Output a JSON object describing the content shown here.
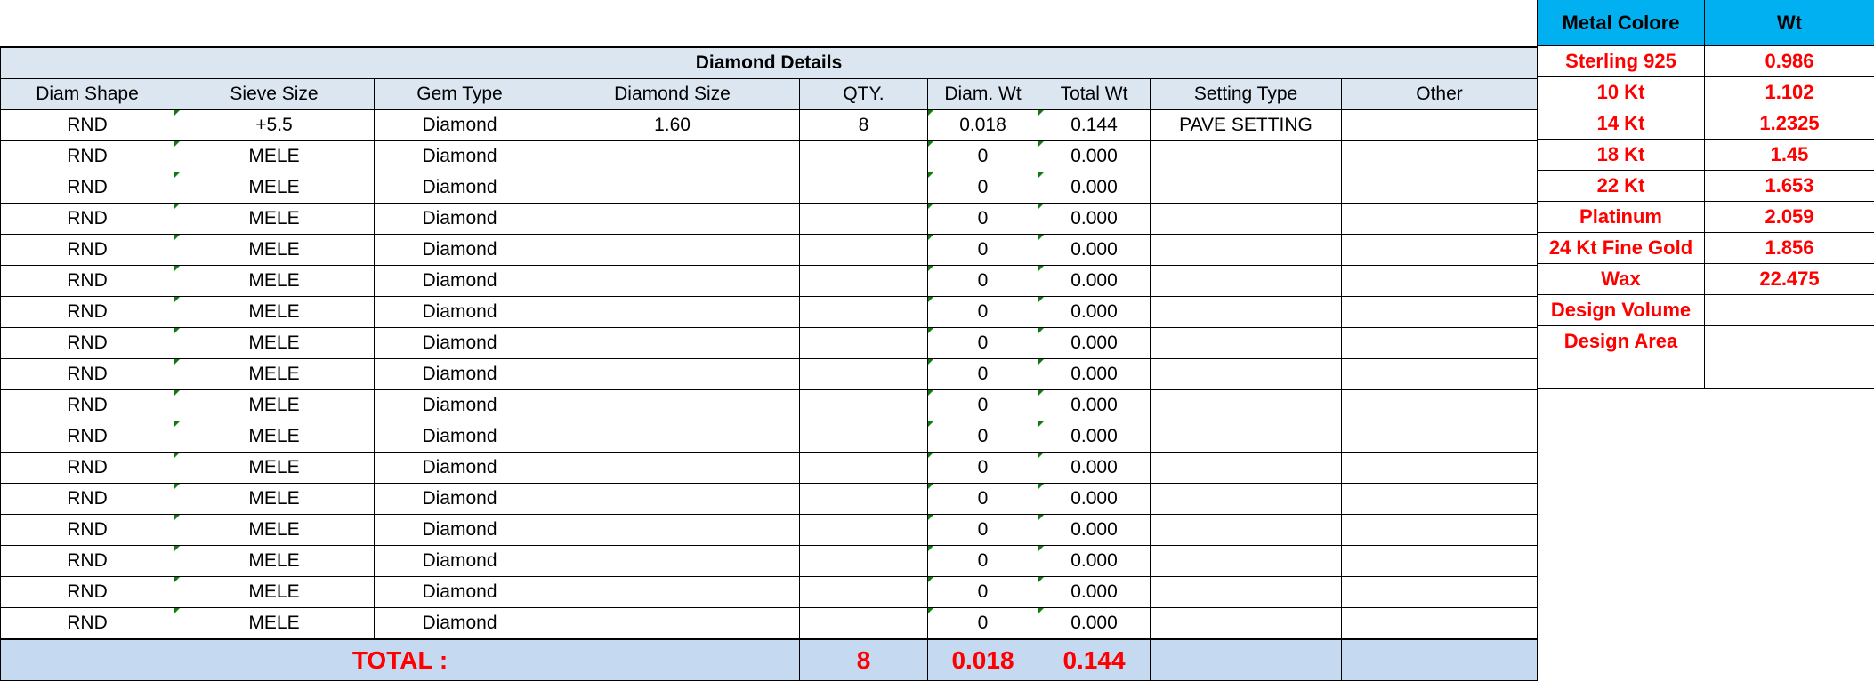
{
  "diamond_details": {
    "title": "Diamond Details",
    "columns": [
      "Diam Shape",
      "Sieve Size",
      "Gem Type",
      "Diamond Size",
      "QTY.",
      "Diam. Wt",
      "Total Wt",
      "Setting Type",
      "Other"
    ],
    "rows": [
      [
        "RND",
        "+5.5",
        "Diamond",
        "1.60",
        "8",
        "0.018",
        "0.144",
        "PAVE SETTING",
        ""
      ],
      [
        "RND",
        "MELE",
        "Diamond",
        "",
        "",
        "0",
        "0.000",
        "",
        ""
      ],
      [
        "RND",
        "MELE",
        "Diamond",
        "",
        "",
        "0",
        "0.000",
        "",
        ""
      ],
      [
        "RND",
        "MELE",
        "Diamond",
        "",
        "",
        "0",
        "0.000",
        "",
        ""
      ],
      [
        "RND",
        "MELE",
        "Diamond",
        "",
        "",
        "0",
        "0.000",
        "",
        ""
      ],
      [
        "RND",
        "MELE",
        "Diamond",
        "",
        "",
        "0",
        "0.000",
        "",
        ""
      ],
      [
        "RND",
        "MELE",
        "Diamond",
        "",
        "",
        "0",
        "0.000",
        "",
        ""
      ],
      [
        "RND",
        "MELE",
        "Diamond",
        "",
        "",
        "0",
        "0.000",
        "",
        ""
      ],
      [
        "RND",
        "MELE",
        "Diamond",
        "",
        "",
        "0",
        "0.000",
        "",
        ""
      ],
      [
        "RND",
        "MELE",
        "Diamond",
        "",
        "",
        "0",
        "0.000",
        "",
        ""
      ],
      [
        "RND",
        "MELE",
        "Diamond",
        "",
        "",
        "0",
        "0.000",
        "",
        ""
      ],
      [
        "RND",
        "MELE",
        "Diamond",
        "",
        "",
        "0",
        "0.000",
        "",
        ""
      ],
      [
        "RND",
        "MELE",
        "Diamond",
        "",
        "",
        "0",
        "0.000",
        "",
        ""
      ],
      [
        "RND",
        "MELE",
        "Diamond",
        "",
        "",
        "0",
        "0.000",
        "",
        ""
      ],
      [
        "RND",
        "MELE",
        "Diamond",
        "",
        "",
        "0",
        "0.000",
        "",
        ""
      ],
      [
        "RND",
        "MELE",
        "Diamond",
        "",
        "",
        "0",
        "0.000",
        "",
        ""
      ],
      [
        "RND",
        "MELE",
        "Diamond",
        "",
        "",
        "0",
        "0.000",
        "",
        ""
      ]
    ],
    "total": {
      "label": "TOTAL :",
      "qty": "8",
      "diam_wt": "0.018",
      "total_wt": "0.144"
    }
  },
  "metal": {
    "columns": [
      "Metal Colore",
      "Wt"
    ],
    "rows": [
      [
        "Sterling 925",
        "0.986"
      ],
      [
        "10 Kt",
        "1.102"
      ],
      [
        "14 Kt",
        "1.2325"
      ],
      [
        "18 Kt",
        "1.45"
      ],
      [
        "22 Kt",
        "1.653"
      ],
      [
        "Platinum",
        "2.059"
      ],
      [
        "24 Kt Fine Gold",
        "1.856"
      ],
      [
        "Wax",
        "22.475"
      ],
      [
        "Design Volume",
        ""
      ],
      [
        "Design Area",
        ""
      ],
      [
        "",
        ""
      ]
    ]
  },
  "colors": {
    "header_bg": "#dce6f1",
    "total_bg": "#c5d9f1",
    "metal_header_bg": "#00b0f0",
    "accent_text": "#ff0000"
  }
}
